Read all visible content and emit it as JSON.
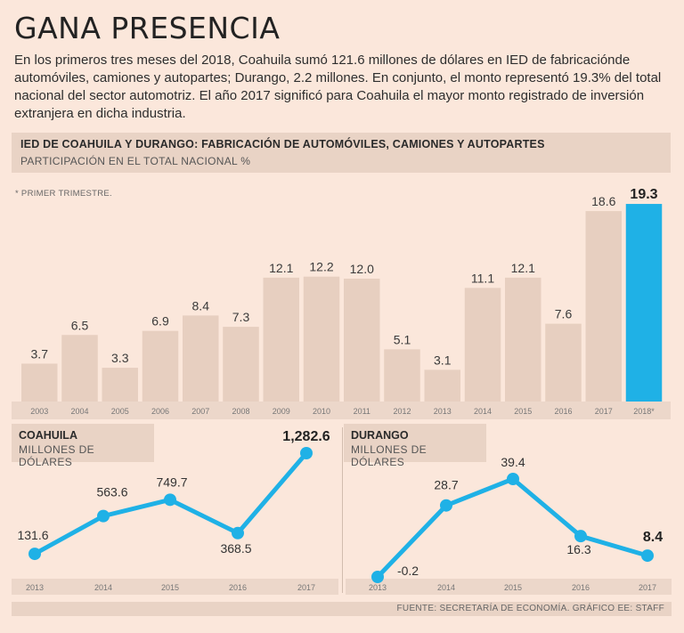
{
  "title": "GANA PRESENCIA",
  "intro": "En los primeros tres meses del 2018, Coahuila sumó 121.6 millones de dólares en IED de fabricacióndе automóviles, camiones y autopartes; Durango, 2.2 millones. En conjunto, el monto representó 19.3% del total nacional del sector automotriz. El año 2017 significó para Coahuila el mayor monto registrado de inversión extranjera en dicha industria.",
  "footer": "FUENTE: SECRETARÍA DE ECONOMÍA.  GRÁFICO EE: STAFF",
  "colors": {
    "bar": "#e7cfc0",
    "highlight": "#1fb1e6",
    "line": "#1fb1e6",
    "background": "#fbe7db"
  },
  "chart_data": [
    {
      "type": "bar",
      "title": "IED DE COAHUILA Y DURANGO: FABRICACIÓN DE AUTOMÓVILES, CAMIONES Y AUTOPARTES",
      "subtitle": "PARTICIPACIÓN EN EL TOTAL NACIONAL %",
      "note": "* PRIMER TRIMESTRE.",
      "categories": [
        "2003",
        "2004",
        "2005",
        "2006",
        "2007",
        "2008",
        "2009",
        "2010",
        "2011",
        "2012",
        "2013",
        "2014",
        "2015",
        "2016",
        "2017",
        "2018*"
      ],
      "values": [
        3.7,
        6.5,
        3.3,
        6.9,
        8.4,
        7.3,
        12.1,
        12.2,
        12.0,
        5.1,
        3.1,
        11.1,
        12.1,
        7.6,
        18.6,
        19.3
      ],
      "labels": [
        "3.7",
        "6.5",
        "3.3",
        "6.9",
        "8.4",
        "7.3",
        "12.1",
        "12.2",
        "12.0",
        "5.1",
        "3.1",
        "11.1",
        "12.1",
        "7.6",
        "18.6",
        "19.3"
      ],
      "highlight_index": 15,
      "ylim": [
        0,
        20
      ],
      "grid": false
    },
    {
      "type": "line",
      "title": "COAHUILA",
      "subtitle": "MILLONES DE DÓLARES",
      "x": [
        "2013",
        "2014",
        "2015",
        "2016",
        "2017"
      ],
      "values": [
        131.6,
        563.6,
        749.7,
        368.5,
        1282.6
      ],
      "labels": [
        "131.6",
        "563.6",
        "749.7",
        "368.5",
        "1,282.6"
      ],
      "highlight_index": 4,
      "ylim": [
        0,
        1282.6
      ]
    },
    {
      "type": "line",
      "title": "DURANGO",
      "subtitle": "MILLONES DE DÓLARES",
      "x": [
        "2013",
        "2014",
        "2015",
        "2016",
        "2017"
      ],
      "values": [
        -0.2,
        28.7,
        39.4,
        16.3,
        8.4
      ],
      "labels": [
        "-0.2",
        "28.7",
        "39.4",
        "16.3",
        "8.4"
      ],
      "highlight_index": 4,
      "ylim": [
        -0.2,
        39.4
      ]
    }
  ]
}
